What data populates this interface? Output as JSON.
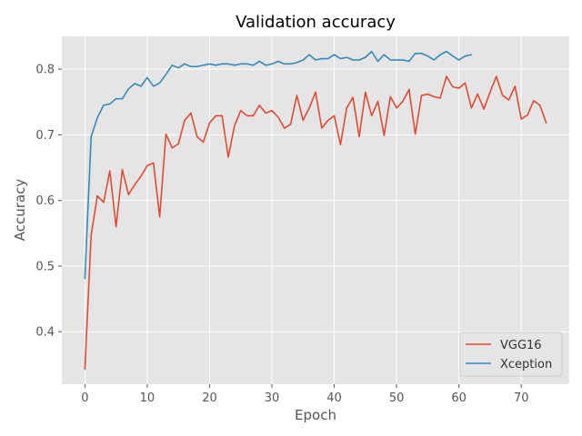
{
  "chart_data": {
    "type": "line",
    "title": "Validation accuracy",
    "xlabel": "Epoch",
    "ylabel": "Accuracy",
    "xlim": [
      -3.7,
      77.7
    ],
    "ylim": [
      0.32,
      0.85
    ],
    "xticks": [
      0,
      10,
      20,
      30,
      40,
      50,
      60,
      70
    ],
    "yticks": [
      0.4,
      0.5,
      0.6,
      0.7,
      0.8
    ],
    "grid": true,
    "legend_position": "lower-right",
    "background": "#e5e5e5",
    "grid_color": "#ffffff",
    "series": [
      {
        "name": "VGG16",
        "color": "#e24a33",
        "x": [
          0,
          1,
          2,
          3,
          4,
          5,
          6,
          7,
          8,
          9,
          10,
          11,
          12,
          13,
          14,
          15,
          16,
          17,
          18,
          19,
          20,
          21,
          22,
          23,
          24,
          25,
          26,
          27,
          28,
          29,
          30,
          31,
          32,
          33,
          34,
          35,
          36,
          37,
          38,
          39,
          40,
          41,
          42,
          43,
          44,
          45,
          46,
          47,
          48,
          49,
          50,
          51,
          52,
          53,
          54,
          55,
          56,
          57,
          58,
          59,
          60,
          61,
          62,
          63,
          64,
          65,
          66,
          67,
          68,
          69,
          70,
          71,
          72,
          73,
          74
        ],
        "values": [
          0.343,
          0.547,
          0.607,
          0.597,
          0.645,
          0.56,
          0.647,
          0.609,
          0.624,
          0.637,
          0.653,
          0.657,
          0.575,
          0.701,
          0.68,
          0.686,
          0.722,
          0.733,
          0.697,
          0.689,
          0.718,
          0.729,
          0.729,
          0.666,
          0.714,
          0.737,
          0.729,
          0.729,
          0.745,
          0.733,
          0.737,
          0.727,
          0.71,
          0.716,
          0.76,
          0.722,
          0.741,
          0.765,
          0.71,
          0.722,
          0.729,
          0.685,
          0.741,
          0.757,
          0.697,
          0.765,
          0.729,
          0.751,
          0.699,
          0.758,
          0.741,
          0.751,
          0.769,
          0.701,
          0.76,
          0.762,
          0.758,
          0.756,
          0.789,
          0.773,
          0.771,
          0.779,
          0.741,
          0.762,
          0.739,
          0.765,
          0.789,
          0.76,
          0.753,
          0.774,
          0.724,
          0.73,
          0.752,
          0.745,
          0.718
        ]
      },
      {
        "name": "Xception",
        "color": "#348abd",
        "x": [
          0,
          1,
          2,
          3,
          4,
          5,
          6,
          7,
          8,
          9,
          10,
          11,
          12,
          13,
          14,
          15,
          16,
          17,
          18,
          19,
          20,
          21,
          22,
          23,
          24,
          25,
          26,
          27,
          28,
          29,
          30,
          31,
          32,
          33,
          34,
          35,
          36,
          37,
          38,
          39,
          40,
          41,
          42,
          43,
          44,
          45,
          46,
          47,
          48,
          49,
          50,
          51,
          52,
          53,
          54,
          55,
          56,
          57,
          58,
          59,
          60,
          61,
          62
        ],
        "values": [
          0.481,
          0.697,
          0.726,
          0.745,
          0.747,
          0.755,
          0.755,
          0.77,
          0.778,
          0.774,
          0.787,
          0.774,
          0.779,
          0.792,
          0.806,
          0.802,
          0.808,
          0.804,
          0.804,
          0.806,
          0.808,
          0.806,
          0.808,
          0.808,
          0.806,
          0.808,
          0.808,
          0.806,
          0.812,
          0.806,
          0.808,
          0.812,
          0.808,
          0.808,
          0.81,
          0.814,
          0.822,
          0.814,
          0.816,
          0.816,
          0.822,
          0.816,
          0.818,
          0.814,
          0.814,
          0.818,
          0.827,
          0.812,
          0.822,
          0.814,
          0.814,
          0.814,
          0.812,
          0.824,
          0.824,
          0.82,
          0.814,
          0.822,
          0.827,
          0.82,
          0.814,
          0.82,
          0.822
        ]
      }
    ]
  }
}
